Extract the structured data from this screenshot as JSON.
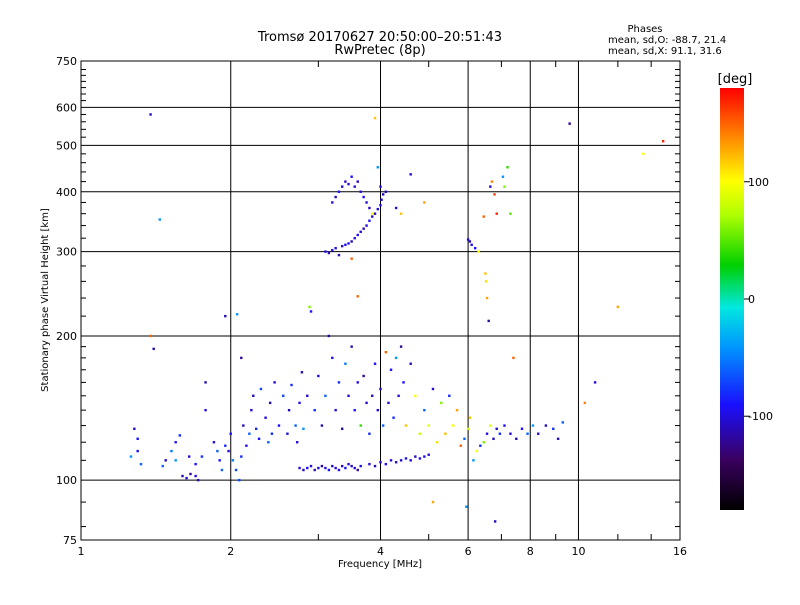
{
  "chart_data": {
    "type": "scatter",
    "title": "Tromsø 20170627 20:50:00–20:51:43",
    "subtitle": "RwPretec (8p)",
    "xlabel": "Frequency [MHz]",
    "ylabel": "Stationary phase Virtual Height [km]",
    "x_scale": "log",
    "y_scale": "log",
    "xlim": [
      1,
      16
    ],
    "ylim": [
      75,
      750
    ],
    "x_ticks": [
      1,
      2,
      4,
      6,
      8,
      10,
      16
    ],
    "x_tick_labels": [
      "1",
      "2",
      "4",
      "6",
      "8",
      "10",
      "16"
    ],
    "x_minor_ticks": [
      3,
      5,
      7,
      9,
      12,
      14
    ],
    "y_ticks": [
      75,
      100,
      200,
      300,
      400,
      500,
      600,
      750
    ],
    "y_tick_labels": [
      "75",
      "100",
      "200",
      "300",
      "400",
      "500",
      "600",
      "750"
    ],
    "y_minor_ticks": [
      80,
      90,
      110,
      120,
      130,
      140,
      150,
      160,
      170,
      180,
      190,
      220,
      240,
      260,
      280,
      320,
      340,
      360,
      380,
      420,
      440,
      460,
      480,
      520,
      540,
      560,
      580,
      620,
      640,
      660,
      680,
      700,
      720
    ],
    "grid": true,
    "legend": {
      "heading": "Phases",
      "lines": [
        "mean, sd,O: -88.7, 21.4",
        "mean, sd,X:  91.1, 31.6"
      ]
    },
    "colorbar": {
      "label": "[deg]",
      "range": [
        -180,
        180
      ],
      "ticks": [
        100,
        0,
        -100
      ],
      "tick_labels": [
        "100",
        "0",
        "-100"
      ]
    },
    "points": [
      [
        1.38,
        580,
        -110
      ],
      [
        1.44,
        350,
        -40
      ],
      [
        1.28,
        128,
        -100
      ],
      [
        1.3,
        122,
        -90
      ],
      [
        1.26,
        112,
        -40
      ],
      [
        1.3,
        115,
        -95
      ],
      [
        1.32,
        108,
        -60
      ],
      [
        1.38,
        200,
        150
      ],
      [
        1.4,
        188,
        -110
      ],
      [
        1.46,
        107,
        -60
      ],
      [
        1.48,
        110,
        -110
      ],
      [
        1.52,
        115,
        -50
      ],
      [
        1.55,
        120,
        -90
      ],
      [
        1.58,
        124,
        -80
      ],
      [
        1.55,
        110,
        -40
      ],
      [
        1.6,
        102,
        -110
      ],
      [
        1.63,
        101,
        -100
      ],
      [
        1.66,
        103,
        -120
      ],
      [
        1.7,
        102,
        -100
      ],
      [
        1.72,
        100,
        -110
      ],
      [
        1.65,
        112,
        -100
      ],
      [
        1.7,
        108,
        -90
      ],
      [
        1.75,
        112,
        -80
      ],
      [
        1.78,
        140,
        -100
      ],
      [
        1.78,
        160,
        -110
      ],
      [
        1.85,
        120,
        -100
      ],
      [
        1.88,
        115,
        -60
      ],
      [
        1.9,
        110,
        -90
      ],
      [
        1.92,
        105,
        -60
      ],
      [
        1.95,
        220,
        -110
      ],
      [
        1.95,
        118,
        -80
      ],
      [
        1.98,
        115,
        -100
      ],
      [
        2.0,
        125,
        -90
      ],
      [
        2.02,
        110,
        -50
      ],
      [
        2.05,
        105,
        -70
      ],
      [
        2.06,
        222,
        -40
      ],
      [
        2.08,
        100,
        -70
      ],
      [
        2.1,
        112,
        -80
      ],
      [
        2.12,
        130,
        -110
      ],
      [
        2.1,
        180,
        -120
      ],
      [
        2.15,
        118,
        -90
      ],
      [
        2.18,
        125,
        -60
      ],
      [
        2.2,
        140,
        -100
      ],
      [
        2.22,
        150,
        -110
      ],
      [
        2.25,
        128,
        -80
      ],
      [
        2.28,
        122,
        -90
      ],
      [
        2.3,
        155,
        -70
      ],
      [
        2.35,
        135,
        -100
      ],
      [
        2.38,
        120,
        -60
      ],
      [
        2.4,
        145,
        -110
      ],
      [
        2.42,
        125,
        -80
      ],
      [
        2.45,
        160,
        -100
      ],
      [
        2.5,
        130,
        -90
      ],
      [
        2.55,
        150,
        -70
      ],
      [
        2.6,
        125,
        -100
      ],
      [
        2.62,
        140,
        -110
      ],
      [
        2.65,
        158,
        -80
      ],
      [
        2.7,
        130,
        -60
      ],
      [
        2.72,
        120,
        -100
      ],
      [
        2.75,
        145,
        -90
      ],
      [
        2.78,
        168,
        -110
      ],
      [
        2.8,
        128,
        -40
      ],
      [
        2.85,
        150,
        -100
      ],
      [
        2.88,
        230,
        60
      ],
      [
        2.9,
        225,
        -90
      ],
      [
        2.95,
        140,
        -80
      ],
      [
        3.0,
        165,
        -100
      ],
      [
        3.05,
        130,
        -110
      ],
      [
        3.1,
        150,
        -60
      ],
      [
        3.15,
        200,
        -120
      ],
      [
        3.2,
        180,
        -90
      ],
      [
        3.25,
        140,
        -100
      ],
      [
        3.3,
        160,
        -80
      ],
      [
        3.35,
        128,
        -110
      ],
      [
        3.4,
        175,
        -50
      ],
      [
        3.45,
        150,
        -100
      ],
      [
        3.5,
        190,
        -110
      ],
      [
        3.55,
        140,
        -90
      ],
      [
        3.6,
        160,
        -100
      ],
      [
        3.65,
        130,
        40
      ],
      [
        3.7,
        165,
        -120
      ],
      [
        3.75,
        145,
        -100
      ],
      [
        3.8,
        125,
        -80
      ],
      [
        3.85,
        150,
        -110
      ],
      [
        3.9,
        175,
        -90
      ],
      [
        3.95,
        140,
        -100
      ],
      [
        4.0,
        155,
        -110
      ],
      [
        4.05,
        130,
        -60
      ],
      [
        4.1,
        185,
        150
      ],
      [
        4.15,
        145,
        -100
      ],
      [
        4.2,
        170,
        -90
      ],
      [
        4.25,
        135,
        -80
      ],
      [
        4.3,
        180,
        -40
      ],
      [
        4.35,
        150,
        -100
      ],
      [
        4.4,
        190,
        -120
      ],
      [
        4.45,
        160,
        -90
      ],
      [
        4.5,
        130,
        120
      ],
      [
        4.6,
        175,
        -110
      ],
      [
        4.7,
        150,
        100
      ],
      [
        4.8,
        125,
        80
      ],
      [
        4.9,
        140,
        -60
      ],
      [
        5.0,
        130,
        90
      ],
      [
        5.1,
        155,
        -100
      ],
      [
        5.2,
        120,
        110
      ],
      [
        5.3,
        145,
        60
      ],
      [
        5.4,
        125,
        120
      ],
      [
        5.5,
        150,
        -80
      ],
      [
        5.6,
        130,
        100
      ],
      [
        5.7,
        140,
        130
      ],
      [
        5.8,
        118,
        150
      ],
      [
        5.9,
        122,
        -60
      ],
      [
        6.0,
        128,
        80
      ],
      [
        6.05,
        135,
        120
      ],
      [
        6.15,
        110,
        -40
      ],
      [
        6.25,
        115,
        100
      ],
      [
        6.35,
        118,
        -80
      ],
      [
        6.45,
        120,
        60
      ],
      [
        6.55,
        125,
        -100
      ],
      [
        6.65,
        130,
        90
      ],
      [
        6.75,
        122,
        -110
      ],
      [
        6.85,
        128,
        -100
      ],
      [
        6.95,
        125,
        -80
      ],
      [
        7.1,
        130,
        -90
      ],
      [
        7.3,
        125,
        -100
      ],
      [
        7.5,
        122,
        -110
      ],
      [
        7.7,
        128,
        -90
      ],
      [
        7.9,
        125,
        -60
      ],
      [
        8.1,
        130,
        -40
      ],
      [
        8.3,
        125,
        -100
      ],
      [
        8.6,
        130,
        -110
      ],
      [
        8.9,
        128,
        -80
      ],
      [
        9.1,
        122,
        -100
      ],
      [
        9.3,
        132,
        -60
      ],
      [
        9.6,
        555,
        -120
      ],
      [
        10.3,
        145,
        140
      ],
      [
        10.8,
        160,
        -100
      ],
      [
        12.0,
        230,
        130
      ],
      [
        13.5,
        480,
        100
      ],
      [
        14.8,
        510,
        170
      ],
      [
        2.75,
        106,
        -100
      ],
      [
        2.8,
        105,
        -110
      ],
      [
        2.85,
        106,
        -90
      ],
      [
        2.9,
        107,
        -100
      ],
      [
        2.95,
        105,
        -110
      ],
      [
        3.0,
        106,
        -100
      ],
      [
        3.05,
        107,
        -120
      ],
      [
        3.1,
        106,
        -100
      ],
      [
        3.15,
        105,
        -90
      ],
      [
        3.2,
        107,
        -110
      ],
      [
        3.25,
        106,
        -100
      ],
      [
        3.3,
        105,
        -100
      ],
      [
        3.35,
        107,
        -110
      ],
      [
        3.4,
        106,
        -90
      ],
      [
        3.45,
        108,
        -100
      ],
      [
        3.5,
        107,
        -110
      ],
      [
        3.55,
        106,
        -100
      ],
      [
        3.6,
        105,
        -120
      ],
      [
        3.65,
        107,
        -100
      ],
      [
        3.8,
        108,
        -100
      ],
      [
        3.9,
        107,
        -110
      ],
      [
        4.0,
        109,
        -100
      ],
      [
        4.1,
        108,
        -90
      ],
      [
        4.2,
        110,
        -100
      ],
      [
        4.3,
        109,
        -110
      ],
      [
        4.4,
        110,
        -100
      ],
      [
        4.5,
        111,
        -90
      ],
      [
        4.6,
        110,
        -100
      ],
      [
        4.7,
        112,
        -110
      ],
      [
        4.8,
        111,
        -100
      ],
      [
        4.9,
        112,
        -90
      ],
      [
        5.0,
        113,
        -100
      ],
      [
        3.1,
        300,
        -100
      ],
      [
        3.15,
        298,
        -110
      ],
      [
        3.2,
        302,
        -90
      ],
      [
        3.25,
        305,
        -100
      ],
      [
        3.3,
        295,
        -110
      ],
      [
        3.35,
        308,
        -100
      ],
      [
        3.4,
        310,
        -90
      ],
      [
        3.45,
        312,
        -100
      ],
      [
        3.5,
        315,
        -110
      ],
      [
        3.55,
        320,
        -100
      ],
      [
        3.6,
        325,
        -90
      ],
      [
        3.65,
        330,
        -100
      ],
      [
        3.7,
        335,
        -110
      ],
      [
        3.75,
        340,
        -100
      ],
      [
        3.8,
        348,
        -90
      ],
      [
        3.85,
        355,
        -100
      ],
      [
        3.9,
        360,
        -110
      ],
      [
        3.95,
        368,
        -100
      ],
      [
        4.0,
        375,
        -90
      ],
      [
        4.02,
        385,
        -100
      ],
      [
        4.05,
        395,
        -110
      ],
      [
        3.2,
        380,
        -100
      ],
      [
        3.25,
        390,
        -110
      ],
      [
        3.3,
        400,
        -90
      ],
      [
        3.35,
        410,
        -100
      ],
      [
        3.4,
        420,
        -110
      ],
      [
        3.45,
        415,
        -100
      ],
      [
        3.5,
        430,
        -90
      ],
      [
        3.55,
        410,
        -100
      ],
      [
        3.6,
        420,
        -110
      ],
      [
        3.65,
        400,
        -100
      ],
      [
        3.7,
        390,
        -90
      ],
      [
        3.75,
        380,
        -100
      ],
      [
        3.8,
        370,
        -110
      ],
      [
        3.85,
        360,
        100
      ],
      [
        3.9,
        570,
        120
      ],
      [
        3.95,
        450,
        -40
      ],
      [
        4.0,
        410,
        -100
      ],
      [
        4.1,
        400,
        -110
      ],
      [
        4.3,
        370,
        -100
      ],
      [
        4.4,
        360,
        120
      ],
      [
        4.6,
        435,
        -100
      ],
      [
        4.9,
        380,
        130
      ],
      [
        6.0,
        318,
        -100
      ],
      [
        6.05,
        315,
        -110
      ],
      [
        6.1,
        310,
        -100
      ],
      [
        6.2,
        305,
        -90
      ],
      [
        6.3,
        300,
        100
      ],
      [
        6.45,
        355,
        150
      ],
      [
        6.5,
        270,
        120
      ],
      [
        6.52,
        260,
        110
      ],
      [
        6.55,
        240,
        130
      ],
      [
        6.6,
        215,
        -120
      ],
      [
        6.65,
        410,
        -100
      ],
      [
        6.7,
        420,
        140
      ],
      [
        6.78,
        395,
        160
      ],
      [
        6.85,
        360,
        170
      ],
      [
        7.05,
        430,
        -40
      ],
      [
        7.1,
        410,
        60
      ],
      [
        7.2,
        450,
        40
      ],
      [
        7.3,
        360,
        50
      ],
      [
        7.4,
        180,
        150
      ],
      [
        6.8,
        82,
        -110
      ],
      [
        5.95,
        88,
        -40
      ],
      [
        5.1,
        90,
        130
      ],
      [
        3.5,
        290,
        150
      ],
      [
        3.6,
        242,
        150
      ]
    ]
  }
}
